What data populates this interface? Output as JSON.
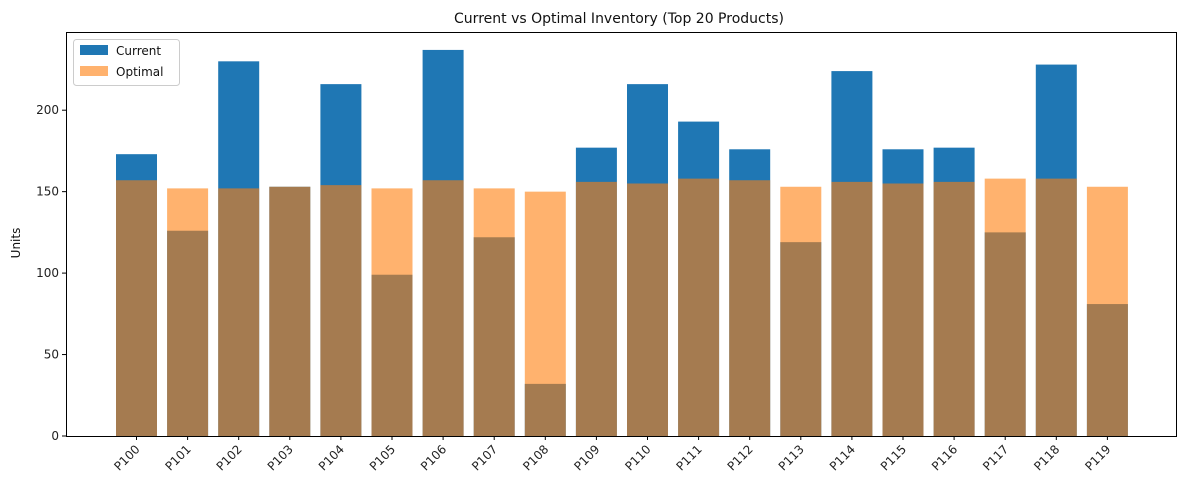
{
  "chart_data": {
    "type": "bar",
    "title": "Current vs Optimal Inventory (Top 20 Products)",
    "xlabel": "",
    "ylabel": "Units",
    "categories": [
      "P100",
      "P101",
      "P102",
      "P103",
      "P104",
      "P105",
      "P106",
      "P107",
      "P108",
      "P109",
      "P110",
      "P111",
      "P112",
      "P113",
      "P114",
      "P115",
      "P116",
      "P117",
      "P118",
      "P119"
    ],
    "series": [
      {
        "name": "Current",
        "color": "#1f77b4",
        "opacity": 1.0,
        "values": [
          173,
          126,
          230,
          153,
          216,
          99,
          237,
          122,
          32,
          177,
          216,
          193,
          176,
          119,
          224,
          176,
          177,
          125,
          228,
          81
        ]
      },
      {
        "name": "Optimal",
        "color": "#ff7f0e",
        "opacity": 0.6,
        "values": [
          157,
          152,
          152,
          153,
          154,
          152,
          157,
          152,
          150,
          156,
          155,
          158,
          157,
          153,
          156,
          155,
          156,
          158,
          158,
          153
        ]
      }
    ],
    "ylim": [
      0,
      248
    ],
    "yticks": [
      0,
      50,
      100,
      150,
      200
    ],
    "grid": false,
    "legend": "top-left"
  }
}
